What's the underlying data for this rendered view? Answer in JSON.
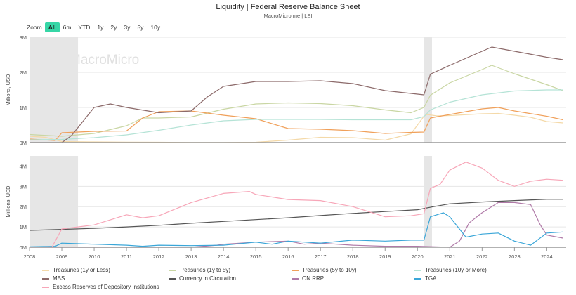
{
  "title": "Liquidity | Federal Reserve Balance Sheet",
  "subtitle": "MacroMicro.me | LEI",
  "watermark": "MacroMicro",
  "zoom": {
    "label": "Zoom",
    "buttons": [
      "All",
      "6m",
      "YTD",
      "1y",
      "2y",
      "3y",
      "5y",
      "10y"
    ],
    "active": "All"
  },
  "colors": {
    "treasuries_short": "#f4d9a8",
    "treasuries_1_5": "#c9d6a3",
    "treasuries_5_10": "#f0a05a",
    "treasuries_10plus": "#b5e3d6",
    "mbs": "#8c6a6a",
    "currency": "#555555",
    "on_rrp": "#b07aa8",
    "tga": "#3aa6d8",
    "excess_reserves": "#f7a6b8",
    "shade": "#e6e6e6"
  },
  "chart_data": [
    {
      "type": "line",
      "panel": "top",
      "ylabel": "Millions, USD",
      "ylim": [
        0,
        3000000
      ],
      "yticks": [
        "0M",
        "1M",
        "2M",
        "3M"
      ],
      "x_ticks": [
        "2008",
        "2009",
        "2010",
        "2011",
        "2012",
        "2013",
        "2014",
        "2015",
        "2016",
        "2017",
        "2018",
        "2019",
        "2020",
        "2021",
        "2022",
        "2023",
        "2024"
      ],
      "shaded_periods": [
        [
          2008.0,
          2009.5
        ],
        [
          2020.2,
          2020.45
        ]
      ],
      "series": [
        {
          "name": "Treasuries (1y or Less)",
          "color_key": "treasuries_short",
          "x": [
            2008,
            2008.5,
            2009,
            2010,
            2011,
            2012,
            2013,
            2014,
            2015,
            2016,
            2017,
            2018,
            2019,
            2019.8,
            2020.2,
            2020.3,
            2020.6,
            2021,
            2022,
            2022.5,
            2023,
            2023.5,
            2024,
            2024.5
          ],
          "y": [
            180000,
            150000,
            30000,
            20000,
            15000,
            10000,
            5000,
            5000,
            10000,
            70000,
            150000,
            140000,
            70000,
            250000,
            750000,
            800000,
            760000,
            770000,
            820000,
            830000,
            780000,
            720000,
            600000,
            560000
          ]
        },
        {
          "name": "Treasuries (1y to 5y)",
          "color_key": "treasuries_1_5",
          "x": [
            2008,
            2009,
            2010,
            2011,
            2011.5,
            2012,
            2013,
            2014,
            2015,
            2016,
            2017,
            2018,
            2019,
            2019.8,
            2020.2,
            2020.4,
            2021,
            2022,
            2022.3,
            2023,
            2024,
            2024.5
          ],
          "y": [
            230000,
            180000,
            260000,
            480000,
            700000,
            700000,
            730000,
            950000,
            1100000,
            1130000,
            1110000,
            1050000,
            930000,
            850000,
            1000000,
            1350000,
            1700000,
            2080000,
            2200000,
            1960000,
            1650000,
            1480000
          ]
        },
        {
          "name": "Treasuries (5y to 10y)",
          "color_key": "treasuries_5_10",
          "x": [
            2008,
            2008.8,
            2009,
            2010,
            2011,
            2011.5,
            2012,
            2013,
            2014,
            2015,
            2016,
            2017,
            2018,
            2019,
            2019.8,
            2020.2,
            2020.4,
            2021,
            2022,
            2022.5,
            2023,
            2024,
            2024.5
          ],
          "y": [
            100000,
            60000,
            280000,
            320000,
            330000,
            700000,
            880000,
            900000,
            780000,
            680000,
            400000,
            380000,
            340000,
            260000,
            290000,
            300000,
            700000,
            800000,
            960000,
            1000000,
            900000,
            750000,
            650000
          ]
        },
        {
          "name": "Treasuries (10y or More)",
          "color_key": "treasuries_10plus",
          "x": [
            2008,
            2009,
            2010,
            2011,
            2012,
            2013,
            2014,
            2015,
            2016,
            2017,
            2018,
            2019,
            2019.8,
            2020.2,
            2020.4,
            2021,
            2022,
            2023,
            2024,
            2024.5
          ],
          "y": [
            80000,
            90000,
            140000,
            220000,
            350000,
            500000,
            620000,
            660000,
            660000,
            660000,
            650000,
            650000,
            650000,
            740000,
            930000,
            1150000,
            1360000,
            1470000,
            1500000,
            1500000
          ]
        },
        {
          "name": "MBS",
          "color_key": "mbs",
          "x": [
            2008,
            2009,
            2009.3,
            2010,
            2010.5,
            2011,
            2012,
            2013,
            2013.5,
            2014,
            2015,
            2016,
            2017,
            2018,
            2019,
            2019.8,
            2020.2,
            2020.4,
            2021,
            2022,
            2022.3,
            2023,
            2024,
            2024.5
          ],
          "y": [
            0,
            0,
            200000,
            1000000,
            1100000,
            1000000,
            850000,
            900000,
            1300000,
            1600000,
            1740000,
            1740000,
            1760000,
            1680000,
            1480000,
            1400000,
            1360000,
            1950000,
            2200000,
            2600000,
            2720000,
            2600000,
            2430000,
            2360000
          ]
        }
      ]
    },
    {
      "type": "line",
      "panel": "bottom",
      "ylabel": "Millions, USD",
      "ylim": [
        0,
        4500000
      ],
      "yticks": [
        "0M",
        "1M",
        "2M",
        "3M",
        "4M"
      ],
      "x_ticks": [
        "2008",
        "2009",
        "2010",
        "2011",
        "2012",
        "2013",
        "2014",
        "2015",
        "2016",
        "2017",
        "2018",
        "2019",
        "2020",
        "2021",
        "2022",
        "2023",
        "2024"
      ],
      "shaded_periods": [
        [
          2008.0,
          2009.5
        ],
        [
          2020.2,
          2020.45
        ]
      ],
      "series": [
        {
          "name": "Currency in Circulation",
          "color_key": "currency",
          "x": [
            2008,
            2009,
            2010,
            2011,
            2012,
            2013,
            2014,
            2015,
            2016,
            2017,
            2018,
            2019,
            2020,
            2020.5,
            2021,
            2022,
            2023,
            2024,
            2024.5
          ],
          "y": [
            830000,
            880000,
            930000,
            1000000,
            1080000,
            1180000,
            1270000,
            1360000,
            1450000,
            1560000,
            1670000,
            1760000,
            1850000,
            2000000,
            2140000,
            2230000,
            2300000,
            2360000,
            2360000
          ]
        },
        {
          "name": "ON RRP",
          "color_key": "on_rrp",
          "x": [
            2008,
            2012,
            2013,
            2013.8,
            2014,
            2015,
            2016,
            2016.5,
            2017,
            2018,
            2019,
            2020,
            2021,
            2021.3,
            2021.6,
            2022,
            2022.5,
            2023,
            2023.5,
            2023.8,
            2024,
            2024.5
          ],
          "y": [
            0,
            0,
            0,
            100000,
            150000,
            250000,
            300000,
            150000,
            200000,
            100000,
            50000,
            50000,
            0,
            300000,
            1200000,
            1700000,
            2200000,
            2200000,
            2100000,
            1100000,
            600000,
            450000
          ]
        },
        {
          "name": "TGA",
          "color_key": "tga",
          "x": [
            2008,
            2008.8,
            2009,
            2010,
            2011,
            2011.5,
            2012,
            2013,
            2014,
            2015,
            2015.5,
            2016,
            2017,
            2018,
            2019,
            2019.8,
            2020.2,
            2020.4,
            2020.8,
            2021,
            2021.5,
            2022,
            2022.5,
            2023,
            2023.5,
            2024,
            2024.5
          ],
          "y": [
            20000,
            50000,
            200000,
            150000,
            100000,
            50000,
            100000,
            80000,
            100000,
            250000,
            150000,
            300000,
            200000,
            350000,
            300000,
            350000,
            350000,
            1500000,
            1700000,
            1500000,
            500000,
            650000,
            700000,
            300000,
            100000,
            700000,
            750000
          ]
        },
        {
          "name": "Excess Reserves of Depository Institutions",
          "color_key": "excess_reserves",
          "x": [
            2008,
            2008.7,
            2009,
            2010,
            2011,
            2011.5,
            2012,
            2013,
            2014,
            2014.8,
            2015,
            2016,
            2017,
            2018,
            2019,
            2019.8,
            2020.2,
            2020.4,
            2020.7,
            2021,
            2021.5,
            2022,
            2022.5,
            2023,
            2023.5,
            2024,
            2024.5
          ],
          "y": [
            0,
            20000,
            900000,
            1100000,
            1600000,
            1450000,
            1550000,
            2200000,
            2650000,
            2750000,
            2600000,
            2350000,
            2300000,
            2000000,
            1500000,
            1550000,
            1650000,
            2900000,
            3100000,
            3800000,
            4200000,
            3900000,
            3300000,
            3000000,
            3250000,
            3350000,
            3300000
          ]
        }
      ]
    }
  ]
}
